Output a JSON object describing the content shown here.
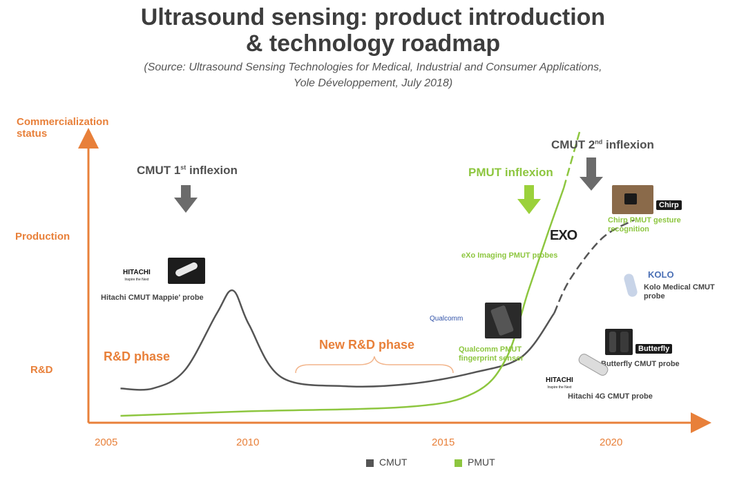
{
  "title": {
    "line1": "Ultrasound sensing: product introduction",
    "line2": "& technology roadmap"
  },
  "source": {
    "line1": "(Source: Ultrasound Sensing Technologies for Medical, Industrial and Consumer Applications,",
    "line2": "Yole Développement, July 2018)"
  },
  "colors": {
    "axis": "#e8803a",
    "cmut": "#555555",
    "pmut": "#8dc63f",
    "arrow_grey": "#6b6b6b"
  },
  "chart_data": {
    "type": "line",
    "y_axis_title_line1": "Commercialization",
    "y_axis_title_line2": "status",
    "y_levels": [
      "R&D",
      "Production"
    ],
    "x_ticks": [
      "2005",
      "2010",
      "2015",
      "2020"
    ],
    "legend": [
      "CMUT",
      "PMUT"
    ],
    "legend_placement": "bottom-center",
    "series": [
      {
        "name": "CMUT",
        "note": "dashed beyond ~2019.5",
        "points": [
          [
            2006,
            0.12
          ],
          [
            2007,
            0.12
          ],
          [
            2008,
            0.2
          ],
          [
            2009,
            0.45
          ],
          [
            2009.5,
            0.55
          ],
          [
            2010,
            0.4
          ],
          [
            2011,
            0.17
          ],
          [
            2013,
            0.13
          ],
          [
            2015,
            0.14
          ],
          [
            2017,
            0.19
          ],
          [
            2018.5,
            0.26
          ],
          [
            2019.5,
            0.45
          ],
          [
            2020,
            0.6
          ],
          [
            2021,
            0.78
          ],
          [
            2022,
            0.86
          ]
        ]
      },
      {
        "name": "PMUT",
        "note": "dashed beyond ~2019.8",
        "points": [
          [
            2006,
            0.0
          ],
          [
            2010,
            0.02
          ],
          [
            2015,
            0.04
          ],
          [
            2017,
            0.1
          ],
          [
            2018,
            0.25
          ],
          [
            2018.7,
            0.55
          ],
          [
            2019.3,
            0.8
          ],
          [
            2019.8,
            1.0
          ],
          [
            2020.3,
            1.25
          ]
        ]
      }
    ],
    "phases": [
      "R&D phase",
      "New R&D phase"
    ],
    "inflexions": {
      "cmut_first": {
        "text": "CMUT 1",
        "sup": "st",
        "suffix": " inflexion"
      },
      "pmut": {
        "text": "PMUT inflexion"
      },
      "cmut_second": {
        "text": "CMUT 2",
        "sup": "nd",
        "suffix": " inflexion"
      }
    },
    "annotations": {
      "hitachi_mappie": {
        "logo": "HITACHI",
        "tagline": "Inspire the Next",
        "caption": "Hitachi CMUT Mappie' probe"
      },
      "qualcomm": {
        "logo": "Qualcomm",
        "caption_line1": "Qualcomm PMUT",
        "caption_line2": "fingerprint sensor"
      },
      "exo": {
        "logo": "EXO",
        "caption": "eXo Imaging PMUT probes"
      },
      "chirp": {
        "logo": "Chirp",
        "caption_line1": "Chirp PMUT gesture",
        "caption_line2": "recognition"
      },
      "kolo": {
        "logo": "KOLO",
        "caption_line1": "Kolo Medical CMUT",
        "caption_line2": "probe"
      },
      "butterfly": {
        "logo": "Butterfly",
        "caption": "Butterfly CMUT probe"
      },
      "hitachi_4g": {
        "logo": "HITACHI",
        "tagline": "Inspire the Next",
        "caption": "Hitachi 4G CMUT probe"
      }
    }
  }
}
